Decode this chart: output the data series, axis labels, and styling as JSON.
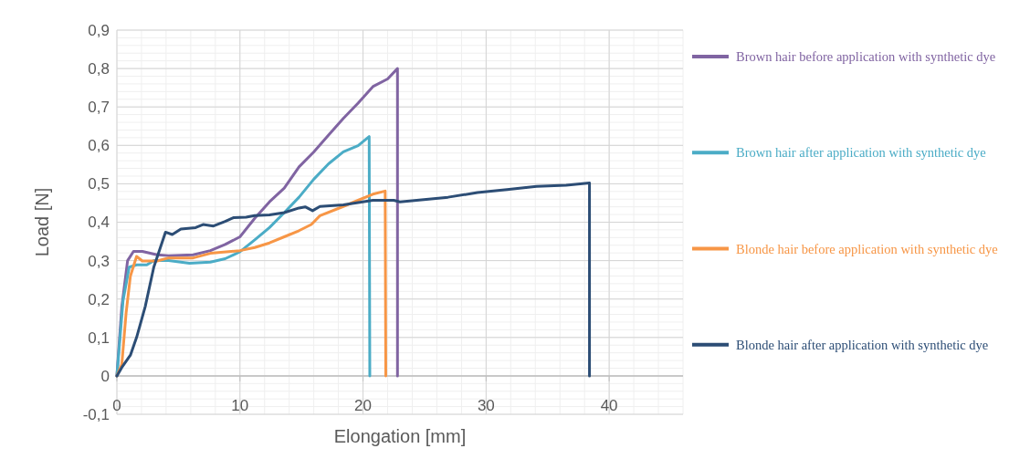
{
  "chart_data": {
    "type": "line",
    "xlabel": "Elongation [mm]",
    "ylabel": "Load [N]",
    "xlim": [
      0,
      46
    ],
    "xticks": [
      0,
      10,
      20,
      30,
      40
    ],
    "ylim": [
      -0.1,
      0.9
    ],
    "yticks": [
      {
        "value": -0.1,
        "label": "-0,1"
      },
      {
        "value": 0,
        "label": "0"
      },
      {
        "value": 0.1,
        "label": "0,1"
      },
      {
        "value": 0.2,
        "label": "0,2"
      },
      {
        "value": 0.3,
        "label": "0,3"
      },
      {
        "value": 0.4,
        "label": "0,4"
      },
      {
        "value": 0.5,
        "label": "0,5"
      },
      {
        "value": 0.6,
        "label": "0,6"
      },
      {
        "value": 0.7,
        "label": "0,7"
      },
      {
        "value": 0.8,
        "label": "0,8"
      },
      {
        "value": 0.9,
        "label": "0,9"
      }
    ],
    "grid": true,
    "legend": "right",
    "marker": "none",
    "line_style": "solid",
    "series": [
      {
        "name": "Brown hair before application with synthetic dye",
        "color": "#8064a2",
        "x": [
          0,
          0.4,
          0.87,
          1.35,
          2.07,
          3.27,
          4.2,
          6.2,
          7.6,
          8.8,
          10,
          11.2,
          12.4,
          13.6,
          14.8,
          16,
          17.2,
          18.4,
          19.6,
          20.8,
          22,
          22.8,
          22.8
        ],
        "values": [
          0,
          0.18,
          0.3,
          0.324,
          0.324,
          0.315,
          0.313,
          0.315,
          0.326,
          0.342,
          0.362,
          0.41,
          0.453,
          0.489,
          0.544,
          0.583,
          0.627,
          0.67,
          0.71,
          0.753,
          0.773,
          0.8,
          0
        ]
      },
      {
        "name": "Brown hair after application with synthetic dye",
        "color": "#4bacc6",
        "x": [
          0,
          0.5,
          1,
          1.6,
          2.43,
          3,
          4.2,
          5.9,
          7.6,
          8.8,
          10,
          11.2,
          12.4,
          13.6,
          14.8,
          16,
          17.2,
          18.4,
          19.6,
          20.5,
          20.55
        ],
        "values": [
          0,
          0.196,
          0.283,
          0.289,
          0.289,
          0.3,
          0.3,
          0.293,
          0.296,
          0.305,
          0.323,
          0.354,
          0.386,
          0.425,
          0.465,
          0.512,
          0.552,
          0.583,
          0.599,
          0.623,
          0
        ]
      },
      {
        "name": "Blonde hair before application with synthetic dye",
        "color": "#f79646",
        "x": [
          0,
          0.4,
          0.75,
          1.1,
          1.6,
          2.07,
          3.27,
          4.2,
          6.2,
          7.6,
          10,
          11.2,
          12.4,
          13.6,
          14.8,
          15.8,
          16.5,
          18.4,
          19.6,
          20.8,
          21.8,
          21.85
        ],
        "values": [
          0,
          0.03,
          0.164,
          0.26,
          0.311,
          0.299,
          0.299,
          0.307,
          0.307,
          0.319,
          0.326,
          0.334,
          0.346,
          0.362,
          0.378,
          0.394,
          0.417,
          0.441,
          0.457,
          0.473,
          0.481,
          0
        ]
      },
      {
        "name": "Blonde hair after application with synthetic dye",
        "color": "#2c4d75",
        "x": [
          0,
          0.4,
          1.1,
          1.6,
          2.3,
          3,
          3.95,
          4.5,
          5.2,
          6.4,
          7,
          7.85,
          8.8,
          9.5,
          10.5,
          11.2,
          12.4,
          13.6,
          14.8,
          15.3,
          15.9,
          16.5,
          18.4,
          20.8,
          22.5,
          23,
          26.9,
          29.3,
          31.7,
          34.1,
          36.5,
          38.4,
          38.4
        ],
        "values": [
          0,
          0.022,
          0.054,
          0.1,
          0.18,
          0.283,
          0.374,
          0.368,
          0.382,
          0.386,
          0.394,
          0.39,
          0.402,
          0.412,
          0.413,
          0.417,
          0.419,
          0.425,
          0.437,
          0.44,
          0.43,
          0.441,
          0.445,
          0.457,
          0.457,
          0.453,
          0.465,
          0.477,
          0.485,
          0.493,
          0.496,
          0.502,
          0
        ]
      }
    ]
  }
}
